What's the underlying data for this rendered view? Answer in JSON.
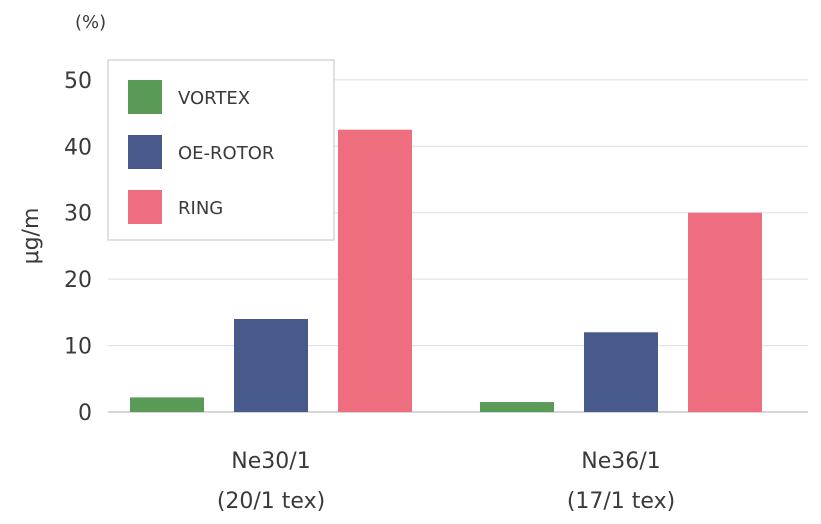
{
  "chart_data": {
    "type": "bar",
    "unit": "(%)",
    "ylabel": "μg/m",
    "ylim": [
      0,
      56
    ],
    "yticks": [
      0,
      10,
      20,
      30,
      40,
      50
    ],
    "grid": true,
    "legend_position": "top-left",
    "categories": [
      {
        "name": "Ne30/1",
        "sub": "(20/1 tex)"
      },
      {
        "name": "Ne36/1",
        "sub": "(17/1 tex)"
      }
    ],
    "series": [
      {
        "name": "VORTEX",
        "color": "#5a9a57",
        "values": [
          2.2,
          1.5
        ]
      },
      {
        "name": "OE-ROTOR",
        "color": "#485a8c",
        "values": [
          14,
          12
        ]
      },
      {
        "name": "RING",
        "color": "#ee6e80",
        "values": [
          42.5,
          30
        ]
      }
    ]
  }
}
